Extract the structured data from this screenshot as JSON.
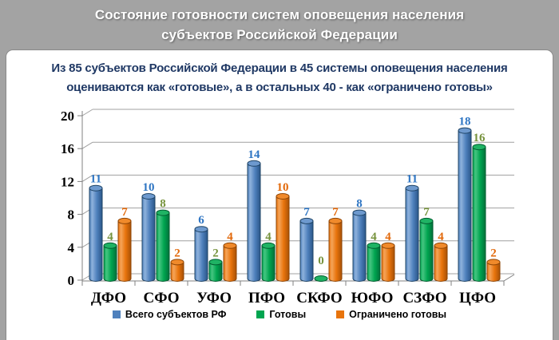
{
  "header": {
    "line1": "Состояние готовности систем оповещения населения",
    "line2": "субъектов Российской Федерации"
  },
  "subtitle": {
    "line1": "Из 85 субъектов Российской Федерации в 45 системы оповещения населения",
    "line2": "оцениваются как «готовые», а в остальных 40 - как «ограничено готовы»"
  },
  "chart_data": {
    "type": "bar",
    "style": "3d-cylinder",
    "title": "Из 85 субъектов Российской Федерации в 45 системы оповещения населения оцениваются как «готовые», а в остальных 40 - как «ограничено готовы»",
    "categories": [
      "ДФО",
      "СФО",
      "УФО",
      "ПФО",
      "СКФО",
      "ЮФО",
      "СЗФО",
      "ЦФО"
    ],
    "series": [
      {
        "name": "Всего субъектов РФ",
        "values": [
          11,
          10,
          6,
          14,
          7,
          8,
          11,
          18
        ],
        "color": "#4F81BD",
        "label_color": "#2E75C3",
        "shades": {
          "light": "#8FB2DC",
          "base": "#4F81BD",
          "dark": "#2A5689",
          "stroke": "#1F4466",
          "cap": "#6D99CE"
        }
      },
      {
        "name": "Готовы",
        "values": [
          4,
          8,
          2,
          4,
          0,
          4,
          7,
          16
        ],
        "color": "#00A550",
        "label_color": "#76923C",
        "shades": {
          "light": "#45C581",
          "base": "#00A550",
          "dark": "#00713A",
          "stroke": "#005C2F",
          "cap": "#1FB364"
        }
      },
      {
        "name": "Ограничено готовы",
        "values": [
          7,
          2,
          4,
          10,
          7,
          4,
          4,
          2
        ],
        "color": "#E8740C",
        "label_color": "#E2690B",
        "shades": {
          "light": "#F5A459",
          "base": "#E8740C",
          "dark": "#A85106",
          "stroke": "#8F4505",
          "cap": "#F08A2B"
        }
      }
    ],
    "ylim": [
      0,
      20
    ],
    "yticks": [
      0,
      4,
      8,
      12,
      16,
      20
    ],
    "grid": true,
    "legend_position": "bottom",
    "value_labels": true
  },
  "colors": {
    "background": "#A3A3A3",
    "panel": "#FFFFFF",
    "panel_border": "#8A8A8A",
    "header_text": "#FFFFFF",
    "subtitle_text": "#1F3864",
    "grid": "#A0A0A0",
    "axis": "#808080",
    "tick_label": "#000000"
  }
}
